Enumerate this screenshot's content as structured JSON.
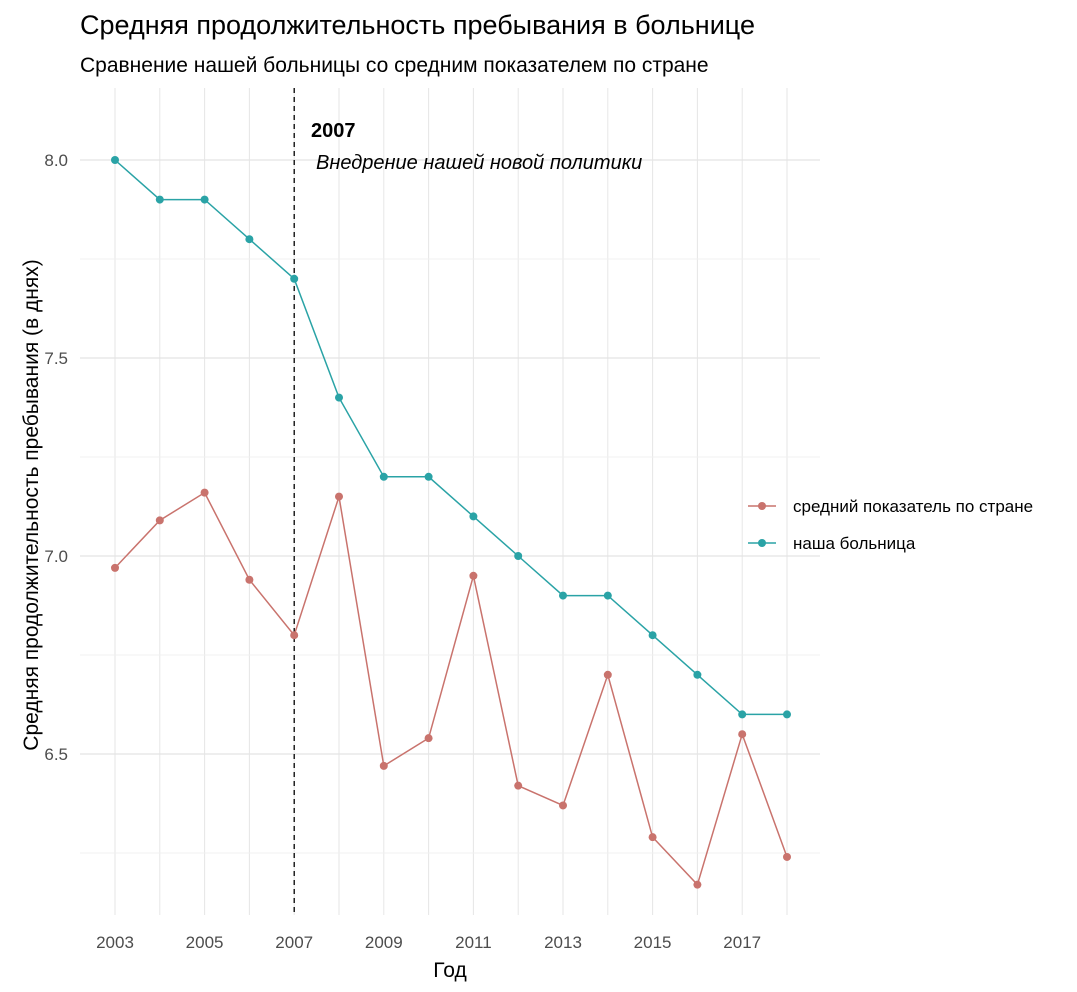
{
  "chart_data": {
    "type": "line",
    "title": "Средняя продолжительность пребывания в больнице",
    "subtitle": "Сравнение нашей больницы со средним показателем по стране",
    "xlabel": "Год",
    "ylabel": "Средняя продолжительность пребывания (в днях)",
    "x": [
      2003,
      2004,
      2005,
      2006,
      2007,
      2008,
      2009,
      2010,
      2011,
      2012,
      2013,
      2014,
      2015,
      2016,
      2017,
      2018
    ],
    "x_ticks": [
      2003,
      2005,
      2007,
      2009,
      2011,
      2013,
      2015,
      2017
    ],
    "y_ticks": [
      6.5,
      7.0,
      7.5,
      8.0
    ],
    "y_tick_labels": [
      "6.5",
      "7.0",
      "7.5",
      "8.0"
    ],
    "xlim": [
      2003,
      2018
    ],
    "ylim": [
      6.25,
      8.0
    ],
    "grid": true,
    "legend_position": "right",
    "series": [
      {
        "name": "средний показатель по стране",
        "color": "#c9736d",
        "values": [
          6.97,
          7.09,
          7.16,
          6.94,
          6.8,
          7.15,
          6.47,
          6.54,
          6.95,
          6.42,
          6.37,
          6.7,
          6.29,
          6.17,
          6.55,
          6.24
        ]
      },
      {
        "name": "наша больница",
        "color": "#2aa3a6",
        "values": [
          8.0,
          7.9,
          7.9,
          7.8,
          7.7,
          7.4,
          7.2,
          7.2,
          7.1,
          7.0,
          6.9,
          6.9,
          6.8,
          6.7,
          6.6,
          6.6
        ]
      }
    ],
    "annotation": {
      "x": 2007,
      "label_bold": "2007",
      "label_italic": "Внедрение нашей новой политики"
    }
  }
}
